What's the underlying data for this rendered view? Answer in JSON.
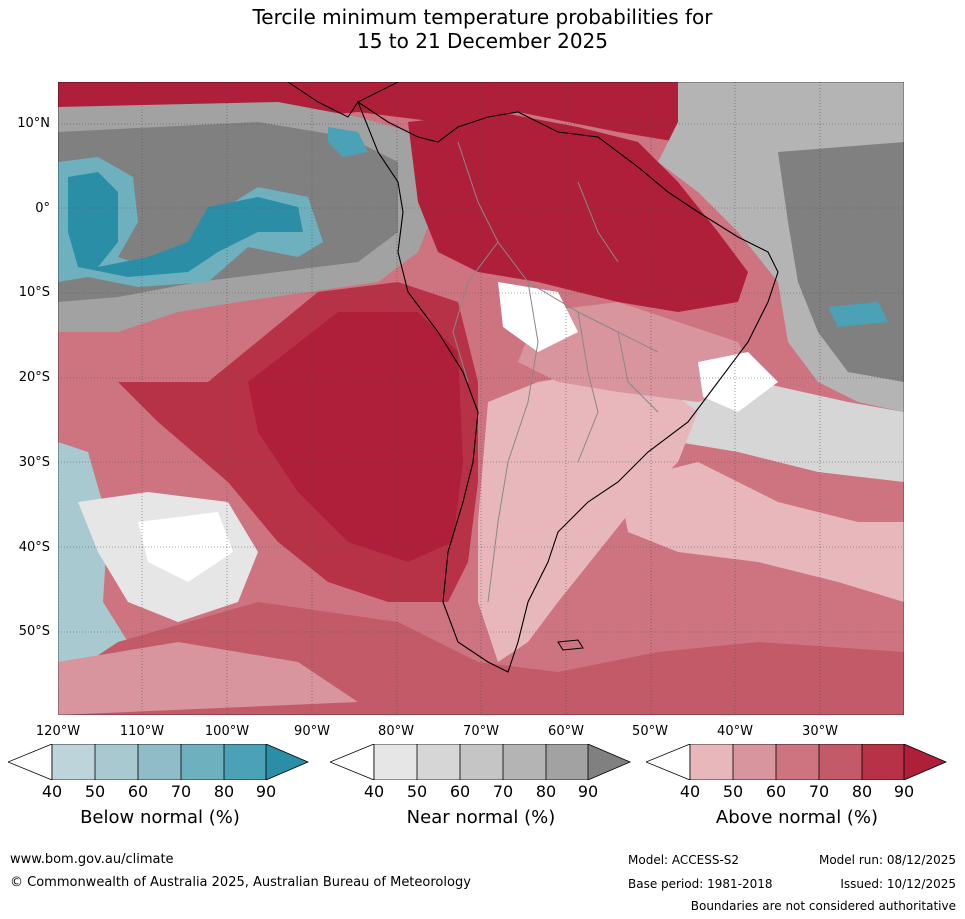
{
  "title": {
    "line1": "Tercile minimum temperature probabilities for",
    "line2": "15 to 21 December 2025"
  },
  "map": {
    "lat_labels": [
      "10°N",
      "0°",
      "10°S",
      "20°S",
      "30°S",
      "40°S",
      "50°S"
    ],
    "lon_labels": [
      "120°W",
      "110°W",
      "100°W",
      "90°W",
      "80°W",
      "70°W",
      "60°W",
      "50°W",
      "40°W",
      "30°W"
    ]
  },
  "legend": {
    "below": {
      "title": "Below normal (%)",
      "ticks": [
        "40",
        "50",
        "60",
        "70",
        "80",
        "90"
      ],
      "colors": [
        "#bdd4da",
        "#a8c9d0",
        "#8fbcc6",
        "#6fb0bf",
        "#4ba1b5",
        "#2a8ea6"
      ]
    },
    "near": {
      "title": "Near normal (%)",
      "ticks": [
        "40",
        "50",
        "60",
        "70",
        "80",
        "90"
      ],
      "colors": [
        "#e6e6e6",
        "#d6d6d6",
        "#c5c5c5",
        "#b4b4b4",
        "#a2a2a2",
        "#808080"
      ]
    },
    "above": {
      "title": "Above normal (%)",
      "ticks": [
        "40",
        "50",
        "60",
        "70",
        "80",
        "90"
      ],
      "colors": [
        "#e8b7bc",
        "#d9959d",
        "#cd7480",
        "#c25a68",
        "#b83247",
        "#b01f3a"
      ]
    }
  },
  "footer": {
    "website": "www.bom.gov.au/climate",
    "copyright": "© Commonwealth of Australia 2025, Australian Bureau of Meteorology",
    "model": "Model: ACCESS-S2",
    "model_run": "Model run: 08/12/2025",
    "base_period": "Base period: 1981-2018",
    "issued": "Issued: 10/12/2025",
    "disclaimer": "Boundaries are not considered authoritative"
  }
}
